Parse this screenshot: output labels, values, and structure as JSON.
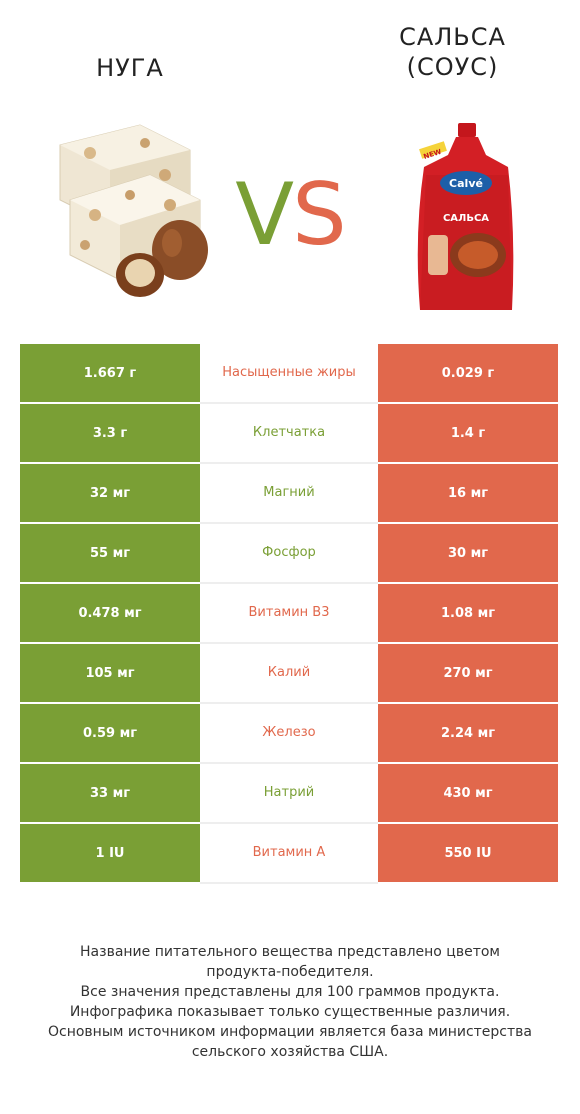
{
  "header": {
    "left_title": "НУГА",
    "right_title_line1": "САЛЬСА",
    "right_title_line2": "(СОУС)",
    "vs_v": "V",
    "vs_s": "S"
  },
  "images": {
    "left_icon": "nougat-image",
    "right_icon": "salsa-pouch-image",
    "right_brand": "Calvé",
    "right_badge": "NEW",
    "right_label": "САЛЬСА"
  },
  "colors": {
    "left_winner": "#7a9f35",
    "right_winner": "#e1684c"
  },
  "rows": [
    {
      "left": "1.667 г",
      "name": "Насыщенные жиры",
      "right": "0.029 г",
      "winner": "r"
    },
    {
      "left": "3.3 г",
      "name": "Клетчатка",
      "right": "1.4 г",
      "winner": "l"
    },
    {
      "left": "32 мг",
      "name": "Магний",
      "right": "16 мг",
      "winner": "l"
    },
    {
      "left": "55 мг",
      "name": "Фосфор",
      "right": "30 мг",
      "winner": "l"
    },
    {
      "left": "0.478 мг",
      "name": "Витамин B3",
      "right": "1.08 мг",
      "winner": "r"
    },
    {
      "left": "105 мг",
      "name": "Калий",
      "right": "270 мг",
      "winner": "r"
    },
    {
      "left": "0.59 мг",
      "name": "Железо",
      "right": "2.24 мг",
      "winner": "r"
    },
    {
      "left": "33 мг",
      "name": "Натрий",
      "right": "430 мг",
      "winner": "l"
    },
    {
      "left": "1 IU",
      "name": "Витамин A",
      "right": "550 IU",
      "winner": "r"
    }
  ],
  "footer": {
    "line1": "Название питательного вещества представлено цветом",
    "line2": "продукта-победителя.",
    "line3": "Все значения представлены для 100 граммов продукта.",
    "line4": "Инфографика показывает только существенные различия.",
    "line5": "Основным источником информации является база министерства",
    "line6": "сельского хозяйства США."
  }
}
